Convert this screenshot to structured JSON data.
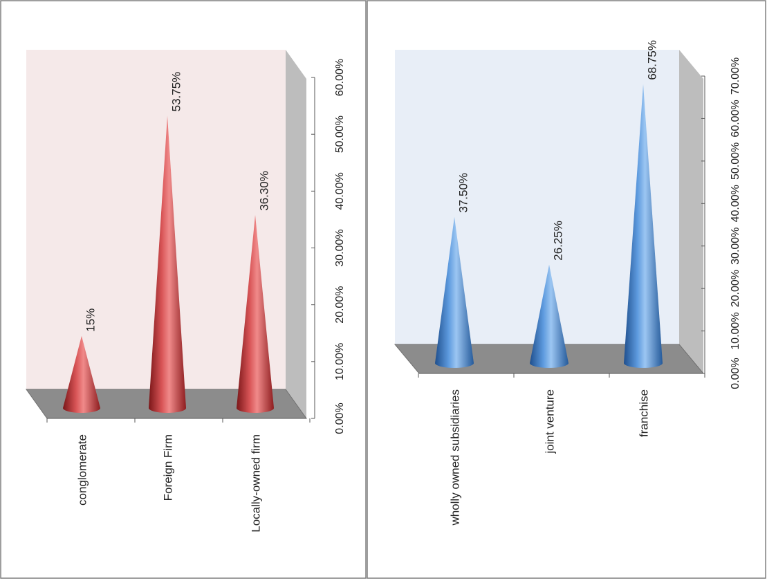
{
  "colors": {
    "left_wall": "#f5e9e9",
    "right_wall": "#e8eef7",
    "side_wall": "#bdbdbd",
    "floor": "#8c8c8c",
    "floor_edge": "#707070",
    "red_cone": "#c0393b",
    "blue_cone": "#3f7fc8",
    "panel_border": "#7f7f7f"
  },
  "chart_data": [
    {
      "type": "bar",
      "mark": "cone-3d",
      "orientation": "rotated",
      "categories": [
        "conglomerate",
        "Foreign Firm",
        "Locally-owned firm"
      ],
      "values": [
        15,
        53.75,
        36.3
      ],
      "value_labels": [
        "15%",
        "53.75%",
        "36.30%"
      ],
      "ylim": [
        0,
        60
      ],
      "ticks": [
        "0.00%",
        "10.00%",
        "20.00%",
        "30.00%",
        "40.00%",
        "50.00%",
        "60.00%"
      ],
      "grid": false,
      "title": "",
      "xlabel": "",
      "ylabel": ""
    },
    {
      "type": "bar",
      "mark": "cone-3d",
      "orientation": "rotated",
      "categories": [
        "wholly owned subsidiaries",
        "joint venture",
        "franchise"
      ],
      "values": [
        37.5,
        26.25,
        68.75
      ],
      "value_labels": [
        "37.50%",
        "26.25%",
        "68.75%"
      ],
      "ylim": [
        0,
        70
      ],
      "ticks": [
        "0.00%",
        "10.00%",
        "20.00%",
        "30.00%",
        "40.00%",
        "50.00%",
        "60.00%",
        "70.00%"
      ],
      "grid": false,
      "title": "",
      "xlabel": "",
      "ylabel": ""
    }
  ]
}
